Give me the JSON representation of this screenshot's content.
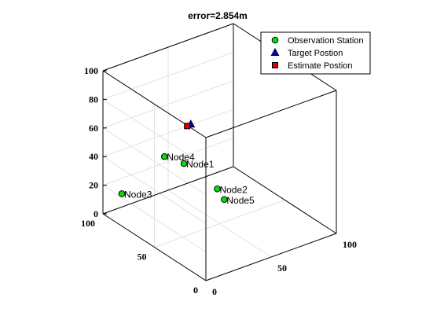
{
  "chart_data": {
    "type": "scatter3d",
    "title": "error=2.854m",
    "xlabel": "",
    "ylabel": "",
    "zlabel": "",
    "xlim": [
      0,
      100
    ],
    "ylim": [
      0,
      100
    ],
    "zlim": [
      0,
      100
    ],
    "x_ticks": [
      "0",
      "50",
      "100"
    ],
    "y_ticks": [
      "0",
      "50",
      "100"
    ],
    "z_ticks": [
      "0",
      "20",
      "40",
      "60",
      "80",
      "100"
    ],
    "grid": true,
    "legend_position": "top-right",
    "series": [
      {
        "name": "Observation Station",
        "marker": "circle",
        "color": "#00e000",
        "points": [
          {
            "label": "Node1",
            "x": 40,
            "y": 72,
            "z": 35
          },
          {
            "label": "Node2",
            "x": 60,
            "y": 65,
            "z": 14
          },
          {
            "label": "Node3",
            "x": 5,
            "y": 88,
            "z": 18
          },
          {
            "label": "Node4",
            "x": 14,
            "y": 58,
            "z": 55
          },
          {
            "label": "Node5",
            "x": 63,
            "y": 62,
            "z": 7
          }
        ]
      },
      {
        "name": "Target Postion",
        "marker": "triangle",
        "color": "#0000cc",
        "points": [
          {
            "x": 20,
            "y": 40,
            "z": 84
          }
        ]
      },
      {
        "name": "Estimate Postion",
        "marker": "square",
        "color": "#dd0000",
        "points": [
          {
            "x": 18,
            "y": 41,
            "z": 83
          }
        ]
      }
    ]
  }
}
